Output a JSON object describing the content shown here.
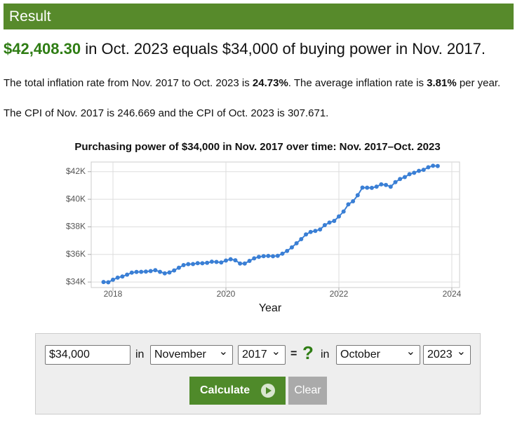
{
  "header": {
    "title": "Result"
  },
  "result": {
    "amount": "$42,408.30",
    "rest": "in Oct. 2023 equals $34,000 of buying power in Nov. 2017."
  },
  "paragraphs": [
    [
      "The total inflation rate from Nov. 2017 to Oct. 2023 is ",
      "24.73%",
      ". The average inflation rate is ",
      "3.81%",
      " per year."
    ],
    [
      "The CPI of Nov. 2017 is 246.669 and the CPI of Oct. 2023 is 307.671."
    ]
  ],
  "chart_data": {
    "type": "line",
    "title": "Purchasing power of $34,000 in Nov. 2017 over time: Nov. 2017–Oct. 2023",
    "x_label": "Year",
    "x": [
      2017.833,
      2017.917,
      2018.0,
      2018.083,
      2018.167,
      2018.25,
      2018.333,
      2018.417,
      2018.5,
      2018.583,
      2018.667,
      2018.75,
      2018.833,
      2018.917,
      2019.0,
      2019.083,
      2019.167,
      2019.25,
      2019.333,
      2019.417,
      2019.5,
      2019.583,
      2019.667,
      2019.75,
      2019.833,
      2019.917,
      2020.0,
      2020.083,
      2020.167,
      2020.25,
      2020.333,
      2020.417,
      2020.5,
      2020.583,
      2020.667,
      2020.75,
      2020.833,
      2020.917,
      2021.0,
      2021.083,
      2021.167,
      2021.25,
      2021.333,
      2021.417,
      2021.5,
      2021.583,
      2021.667,
      2021.75,
      2021.833,
      2021.917,
      2022.0,
      2022.083,
      2022.167,
      2022.25,
      2022.333,
      2022.417,
      2022.5,
      2022.583,
      2022.667,
      2022.75,
      2022.833,
      2022.917,
      2023.0,
      2023.083,
      2023.167,
      2023.25,
      2023.333,
      2023.417,
      2023.5,
      2023.583,
      2023.667,
      2023.75
    ],
    "series": [
      {
        "color": "#3a7fd5",
        "values": [
          34000,
          33980,
          34165,
          34320,
          34398,
          34534,
          34678,
          34733,
          34735,
          34755,
          34795,
          34857,
          34740,
          34629,
          34695,
          34842,
          35039,
          35224,
          35299,
          35306,
          35365,
          35363,
          35391,
          35472,
          35453,
          35420,
          35558,
          35655,
          35578,
          35340,
          35341,
          35534,
          35714,
          35826,
          35876,
          35891,
          35869,
          35903,
          36056,
          36253,
          36510,
          36810,
          37105,
          37450,
          37630,
          37708,
          37810,
          38124,
          38312,
          38429,
          38753,
          39107,
          39629,
          39850,
          40289,
          40843,
          40838,
          40824,
          40912,
          41078,
          41036,
          40910,
          41237,
          41467,
          41605,
          41815,
          41921,
          42056,
          42136,
          42320,
          42425,
          42408
        ]
      }
    ],
    "xlim": [
      2017.615,
      2024.137
    ],
    "xticks": [
      2018,
      2020,
      2022,
      2024
    ],
    "ylim": [
      33600,
      42700
    ],
    "yticks": [
      {
        "value": 34000,
        "label": "$34K"
      },
      {
        "value": 36000,
        "label": "$36K"
      },
      {
        "value": 38000,
        "label": "$38K"
      },
      {
        "value": 40000,
        "label": "$40K"
      },
      {
        "value": 42000,
        "label": "$42K"
      }
    ],
    "grid": true
  },
  "form": {
    "amount": "$34,000",
    "in1": "in",
    "from_month": "November",
    "from_year": "2017",
    "equals": "=",
    "question": "?",
    "in2": "in",
    "to_month": "October",
    "to_year": "2023",
    "calculate": "Calculate",
    "clear": "Clear"
  }
}
